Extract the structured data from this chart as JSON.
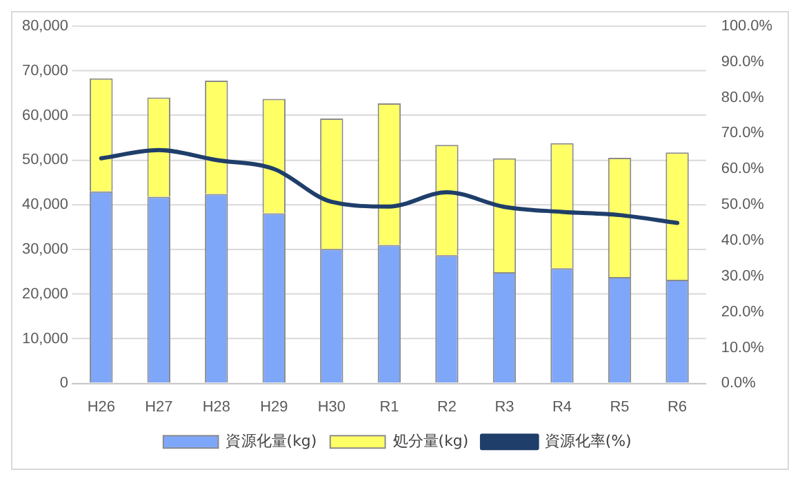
{
  "chart_data": {
    "type": "bar",
    "stacked": true,
    "categories": [
      "H26",
      "H27",
      "H28",
      "H29",
      "H30",
      "R1",
      "R2",
      "R3",
      "R4",
      "R5",
      "R6"
    ],
    "series": [
      {
        "name": "資源化量(kg)",
        "color": "#7fa7f9",
        "values": [
          43000,
          41800,
          42400,
          38100,
          30100,
          31000,
          28700,
          24900,
          25800,
          23800,
          23200
        ]
      },
      {
        "name": "処分量(kg)",
        "color": "#ffff66",
        "values": [
          25300,
          22200,
          25400,
          25600,
          29200,
          31700,
          24700,
          25500,
          28000,
          26700,
          28500
        ]
      },
      {
        "name": "資源化率(%)",
        "type": "line",
        "axis": "y2",
        "color": "#1f3e6a",
        "values": [
          63.0,
          65.3,
          62.5,
          60.0,
          50.8,
          49.5,
          53.5,
          49.4,
          48.0,
          47.1,
          44.9
        ]
      }
    ],
    "ylim": [
      0,
      80000
    ],
    "yticks": [
      0,
      {
        "value": 10000,
        "label": "10,000"
      },
      {
        "value": 20000,
        "label": "20,000"
      },
      {
        "value": 30000,
        "label": "30,000"
      },
      {
        "value": 40000,
        "label": "40,000"
      },
      {
        "value": 50000,
        "label": "50,000"
      },
      {
        "value": 60000,
        "label": "60,000"
      },
      {
        "value": 70000,
        "label": "70,000"
      },
      {
        "value": 80000,
        "label": "80,000"
      }
    ],
    "y2lim": [
      0,
      100
    ],
    "y2ticks": [
      {
        "value": 0,
        "label": "0.0%"
      },
      {
        "value": 10,
        "label": "10.0%"
      },
      {
        "value": 20,
        "label": "20.0%"
      },
      {
        "value": 30,
        "label": "30.0%"
      },
      {
        "value": 40,
        "label": "40.0%"
      },
      {
        "value": 50,
        "label": "50.0%"
      },
      {
        "value": 60,
        "label": "60.0%"
      },
      {
        "value": 70,
        "label": "70.0%"
      },
      {
        "value": 80,
        "label": "80.0%"
      },
      {
        "value": 90,
        "label": "90.0%"
      },
      {
        "value": 100,
        "label": "100.0%"
      }
    ],
    "grid": "y",
    "legend": "bottom",
    "marker": "none"
  }
}
